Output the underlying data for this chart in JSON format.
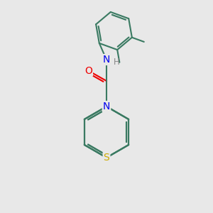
{
  "bg_color": "#e8e8e8",
  "bond_color": "#3a7a62",
  "atom_colors": {
    "N": "#0000ee",
    "O": "#ee0000",
    "S": "#ccaa00",
    "H": "#888888"
  },
  "lw": 1.5,
  "dbo": 0.08,
  "figsize": [
    3.0,
    3.0
  ],
  "dpi": 100
}
